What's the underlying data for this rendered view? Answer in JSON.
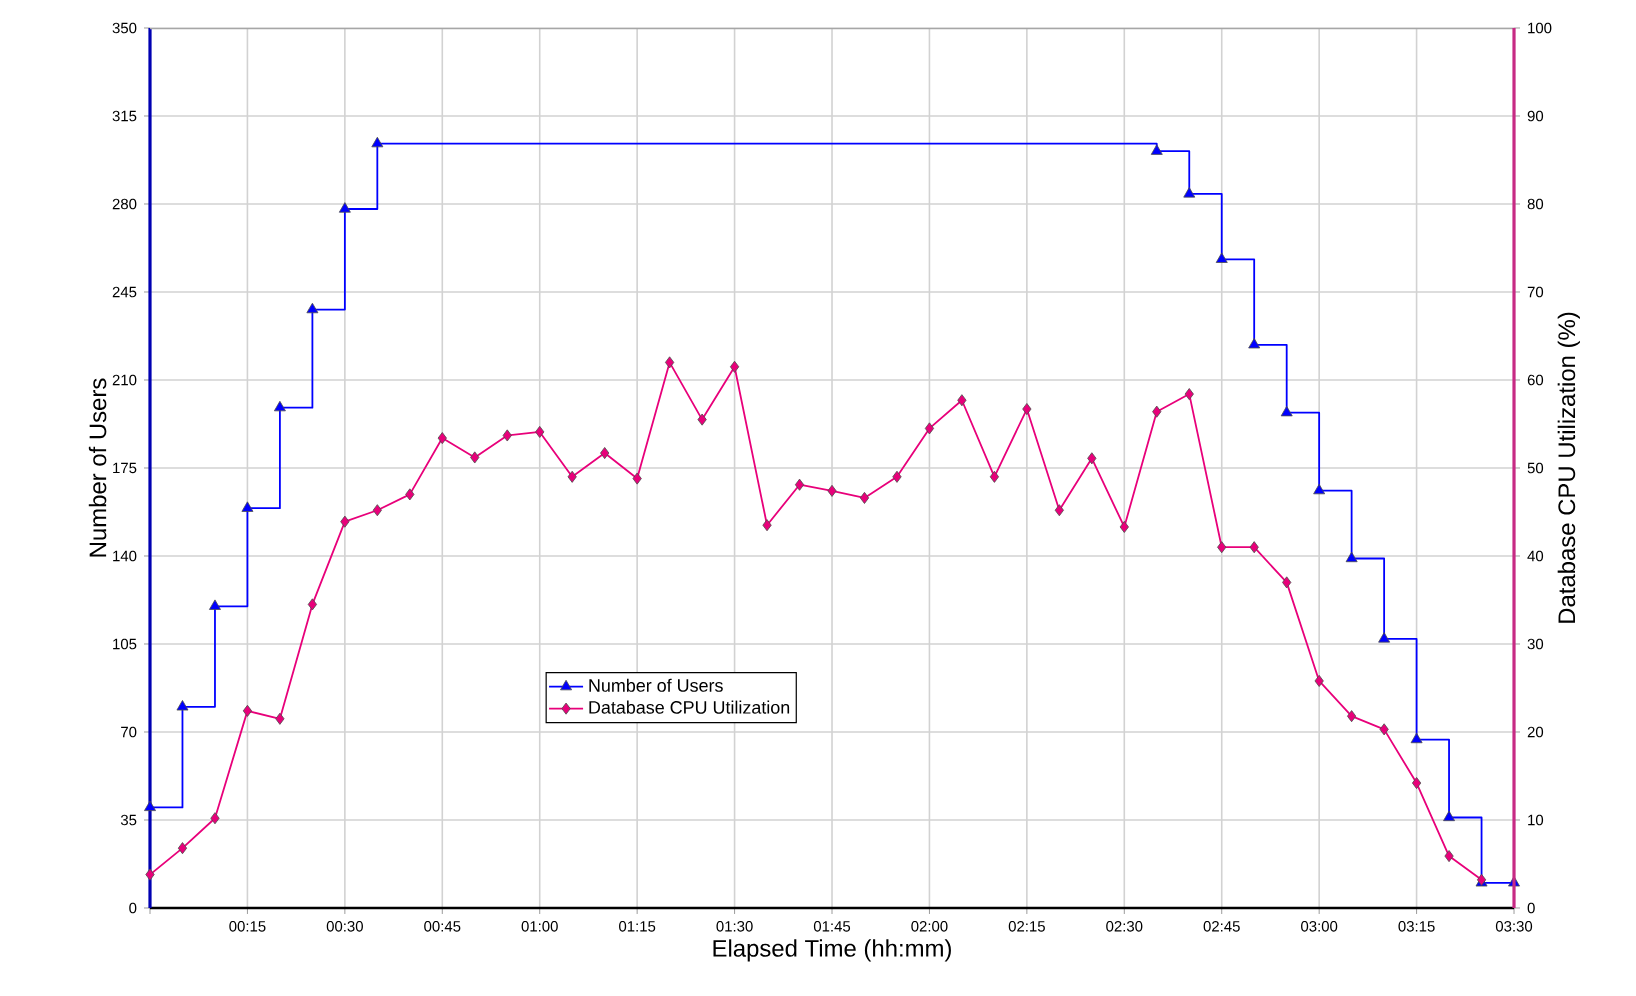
{
  "chart_data": {
    "type": "line",
    "xlabel": "Elapsed Time (hh:mm)",
    "ylabel": "Number of Users",
    "y2label": "Database CPU Utilization (%)",
    "xlim": [
      0,
      3.5
    ],
    "ylim": [
      0,
      350
    ],
    "y2lim": [
      0,
      100
    ],
    "xticks": [
      {
        "value": 0,
        "label": null
      },
      {
        "value": 0.25,
        "label": "00:15"
      },
      {
        "value": 0.5,
        "label": "00:30"
      },
      {
        "value": 0.75,
        "label": "00:45"
      },
      {
        "value": 1,
        "label": "01:00"
      },
      {
        "value": 1.25,
        "label": "01:15"
      },
      {
        "value": 1.5,
        "label": "01:30"
      },
      {
        "value": 1.75,
        "label": "01:45"
      },
      {
        "value": 2,
        "label": "02:00"
      },
      {
        "value": 2.25,
        "label": "02:15"
      },
      {
        "value": 2.5,
        "label": "02:30"
      },
      {
        "value": 2.75,
        "label": "02:45"
      },
      {
        "value": 3,
        "label": "03:00"
      },
      {
        "value": 3.25,
        "label": "03:15"
      },
      {
        "value": 3.5,
        "label": "03:30"
      }
    ],
    "yticks": [
      0,
      35,
      70,
      105,
      140,
      175,
      210,
      245,
      280,
      315,
      350
    ],
    "y2ticks": [
      0,
      10,
      20,
      30,
      40,
      50,
      60,
      70,
      80,
      90,
      100
    ],
    "grid": true,
    "legend": "bottom",
    "series": [
      {
        "name": "Number of Users",
        "type": "step",
        "axis": "y",
        "marker": "triangle",
        "color": "#0000ff",
        "x": [
          0,
          0.0833,
          0.1667,
          0.25,
          0.3333,
          0.4167,
          0.5,
          0.5833,
          2.5833,
          2.6667,
          2.75,
          2.8333,
          2.9167,
          3,
          3.0833,
          3.1667,
          3.25,
          3.3333,
          3.4167,
          3.5
        ],
        "values": [
          40,
          80,
          120,
          159,
          199,
          238,
          278,
          304,
          301,
          284,
          258,
          224,
          197,
          166,
          139,
          107,
          67,
          36,
          10,
          10
        ]
      },
      {
        "name": "Database CPU Utilization",
        "axis": "y2",
        "marker": "diamond",
        "color": "#e8007a",
        "x": [
          0,
          0.0833,
          0.1667,
          0.25,
          0.3333,
          0.4167,
          0.5,
          0.5833,
          0.6667,
          0.75,
          0.8333,
          0.9167,
          1,
          1.0833,
          1.1667,
          1.25,
          1.3333,
          1.4167,
          1.5,
          1.5833,
          1.6667,
          1.75,
          1.8333,
          1.9167,
          2,
          2.0833,
          2.1667,
          2.25,
          2.3333,
          2.4167,
          2.5,
          2.5833,
          2.6667,
          2.75,
          2.8333,
          2.9167,
          3,
          3.0833,
          3.1667,
          3.25,
          3.3333,
          3.4167
        ],
        "values": [
          3.8,
          6.8,
          10.2,
          22.4,
          21.5,
          34.5,
          43.9,
          45.2,
          47,
          53.4,
          51.2,
          53.7,
          54.1,
          49,
          51.7,
          48.8,
          62,
          55.5,
          61.5,
          43.5,
          48.1,
          47.4,
          46.6,
          49,
          54.5,
          57.7,
          49,
          56.7,
          45.2,
          51.1,
          43.3,
          56.4,
          58.4,
          41,
          41,
          37,
          25.8,
          21.8,
          20.3,
          14.2,
          5.9,
          3.2
        ]
      }
    ]
  }
}
